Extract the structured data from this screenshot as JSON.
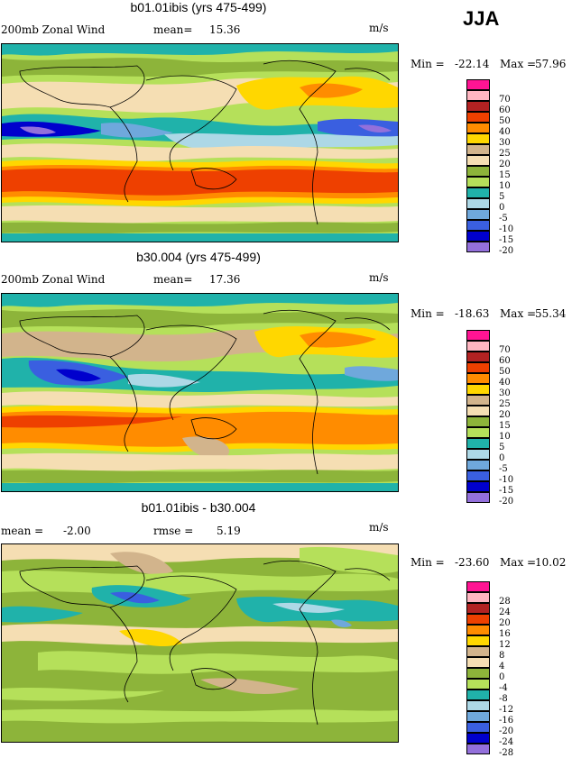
{
  "season": "JJA",
  "panels": [
    {
      "title": "b01.01ibis (yrs 475-499)",
      "left_label": "200mb Zonal Wind",
      "stat_label": "mean=",
      "stat_value": "15.36",
      "units": "m/s",
      "min_label": "Min =",
      "min_value": "-22.14",
      "max_label": "Max =",
      "max_value": "57.96",
      "legend_labels": [
        "70",
        "60",
        "50",
        "40",
        "30",
        "25",
        "20",
        "15",
        "10",
        "5",
        "0",
        "-5",
        "-10",
        "-15",
        "-20"
      ]
    },
    {
      "title": "b30.004 (yrs 475-499)",
      "left_label": "200mb Zonal Wind",
      "stat_label": "mean=",
      "stat_value": "17.36",
      "units": "m/s",
      "min_label": "Min =",
      "min_value": "-18.63",
      "max_label": "Max =",
      "max_value": "55.34",
      "legend_labels": [
        "70",
        "60",
        "50",
        "40",
        "30",
        "25",
        "20",
        "15",
        "10",
        "5",
        "0",
        "-5",
        "-10",
        "-15",
        "-20"
      ]
    },
    {
      "title": "b01.01ibis - b30.004",
      "left_label": "mean =",
      "left_value": "-2.00",
      "stat_label": "rmse =",
      "stat_value": "5.19",
      "units": "m/s",
      "min_label": "Min =",
      "min_value": "-23.60",
      "max_label": "Max =",
      "max_value": "10.02",
      "legend_labels": [
        "28",
        "24",
        "20",
        "16",
        "12",
        "8",
        "4",
        "0",
        "-4",
        "-8",
        "-12",
        "-16",
        "-20",
        "-24",
        "-28"
      ]
    }
  ],
  "colors": {
    "magenta": "#ff1493",
    "pink": "#ffb6c1",
    "darkred": "#b22222",
    "red": "#ee4000",
    "orange": "#ff8c00",
    "gold": "#ffd700",
    "yellow": "#ffe066",
    "tan": "#d2b48c",
    "wheat": "#f5deb3",
    "olive": "#8db43a",
    "green": "#b5e05a",
    "teal": "#20b2aa",
    "lightblue": "#add8e6",
    "skyblue": "#6fa8dc",
    "blue": "#3a5fe0",
    "navy": "#0000cd",
    "purple": "#9370db"
  }
}
